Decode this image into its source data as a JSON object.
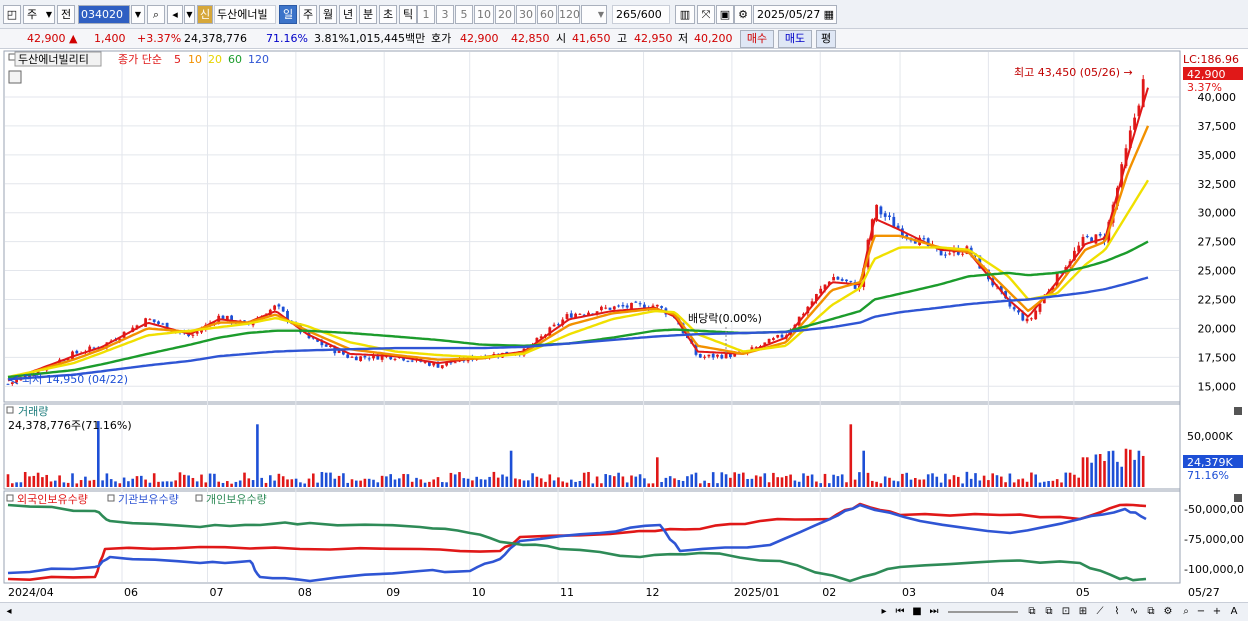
{
  "toolbar": {
    "market": "주",
    "prev": "전",
    "code": "034020",
    "sin": "신",
    "name": "두산에너빌",
    "periods": [
      "일",
      "주",
      "월",
      "년",
      "분",
      "초",
      "틱"
    ],
    "active_period": "일",
    "nums": [
      "1",
      "3",
      "5",
      "10",
      "20",
      "30",
      "60",
      "120"
    ],
    "count": "265",
    "count_total": "/600",
    "date": "2025/05/27"
  },
  "quote": {
    "price": "42,900",
    "arrow": "▲",
    "change": "1,400",
    "change_pct": "+3.37%",
    "volume": "24,378,776",
    "vol_ratio": "71.16%",
    "turnover": "3.81%",
    "amount": "1,015,445백만",
    "bid_label": "호가",
    "ask": "42,900",
    "bid": "42,850",
    "open_label": "시",
    "open": "41,650",
    "high_label": "고",
    "high": "42,950",
    "low_label": "저",
    "low": "40,200",
    "buy": "매수",
    "sell": "매도",
    "eval": "평"
  },
  "legend": {
    "stock": "두산에너빌리티",
    "ma_label": "종가 단순",
    "ma_periods": [
      "5",
      "10",
      "20",
      "60",
      "120"
    ],
    "ma_colors": [
      "#e01818",
      "#f29100",
      "#f0e000",
      "#1c9c2c",
      "#2f55d4"
    ]
  },
  "annotations": {
    "high": "최고 43,450 (05/26) →",
    "low": "최저 14,950 (04/22)",
    "dividend": "배당락(0.00%)",
    "lc": "LC:186.96",
    "price_tag": "42,900",
    "pct_tag": "3.37%"
  },
  "volume_panel": {
    "title": "거래량",
    "value": "24,378,776주(71.16%)",
    "tag": "24,379K",
    "tag_pct": "71.16%",
    "axis": [
      "50,000K"
    ]
  },
  "holdings_panel": {
    "legend": [
      "외국인보유수량",
      "기관보유수량",
      "개인보유수량"
    ],
    "colors": [
      "#e01818",
      "#2f55d4",
      "#2e8b57"
    ],
    "axis": [
      "-50,000,00",
      "-75,000,00",
      "-100,000,0"
    ]
  },
  "colors": {
    "up": "#e01818",
    "down": "#1d4fd6"
  },
  "chart_data": {
    "type": "candlestick",
    "x_ticks": [
      "2024/04",
      "06",
      "07",
      "08",
      "09",
      "10",
      "11",
      "12",
      "2025/01",
      "02",
      "03",
      "04",
      "05",
      "05/27"
    ],
    "y_ticks": [
      "15,000",
      "17,500",
      "20,000",
      "22,500",
      "25,000",
      "27,500",
      "30,000",
      "32,500",
      "35,000",
      "37,500",
      "40,000"
    ],
    "y_range": [
      13900,
      43800
    ],
    "price_series": {
      "x": [
        "2024-04-22",
        "2024-05-15",
        "2024-05-25",
        "2024-06-10",
        "2024-06-25",
        "2024-07-05",
        "2024-07-15",
        "2024-07-25",
        "2024-08-05",
        "2024-08-20",
        "2024-09-05",
        "2024-09-20",
        "2024-10-05",
        "2024-10-20",
        "2024-11-05",
        "2024-11-20",
        "2024-12-05",
        "2024-12-12",
        "2024-12-20",
        "2025-01-05",
        "2025-01-20",
        "2025-02-05",
        "2025-02-15",
        "2025-02-20",
        "2025-03-01",
        "2025-03-15",
        "2025-03-25",
        "2025-04-08",
        "2025-04-15",
        "2025-04-25",
        "2025-05-05",
        "2025-05-12",
        "2025-05-20",
        "2025-05-27"
      ],
      "close": [
        15200,
        17800,
        18500,
        20800,
        19300,
        21000,
        20300,
        21900,
        19200,
        17500,
        17600,
        16800,
        17600,
        18000,
        21200,
        21800,
        22000,
        21000,
        17500,
        17800,
        19500,
        24500,
        23500,
        30500,
        28500,
        26500,
        26800,
        22000,
        20500,
        24500,
        27800,
        27800,
        36000,
        42900
      ]
    },
    "ma_series": [
      {
        "name": "5",
        "y": [
          15500,
          17600,
          18400,
          20500,
          19500,
          20800,
          20500,
          21500,
          19500,
          17800,
          17600,
          17000,
          17500,
          18000,
          20800,
          21500,
          21800,
          21000,
          18000,
          17800,
          19200,
          24000,
          23800,
          29500,
          28500,
          26800,
          26600,
          22500,
          21000,
          24000,
          27300,
          27800,
          35000,
          40800
        ]
      },
      {
        "name": "10",
        "y": [
          15600,
          17300,
          18200,
          20000,
          19700,
          20500,
          20500,
          21200,
          19800,
          18200,
          17700,
          17300,
          17400,
          17900,
          20300,
          21300,
          21700,
          21200,
          18500,
          17800,
          18800,
          23300,
          24000,
          28000,
          28000,
          27000,
          26600,
          23200,
          21500,
          23500,
          26800,
          27500,
          33500,
          37500
        ]
      },
      {
        "name": "20",
        "y": [
          15800,
          17000,
          17900,
          19400,
          19800,
          20100,
          20400,
          20900,
          20200,
          18800,
          18000,
          17700,
          17500,
          17800,
          19500,
          20800,
          21500,
          21400,
          19500,
          18000,
          18500,
          22000,
          23500,
          26000,
          27000,
          27000,
          26800,
          24500,
          22500,
          23000,
          25500,
          26800,
          30000,
          32800
        ]
      },
      {
        "name": "60",
        "y": [
          15800,
          16400,
          16900,
          17800,
          18600,
          19200,
          19600,
          19800,
          19800,
          19600,
          19300,
          19000,
          18600,
          18500,
          18700,
          19200,
          19800,
          19900,
          19800,
          19600,
          19700,
          20800,
          21500,
          22500,
          23000,
          23800,
          24500,
          24800,
          24600,
          24800,
          25300,
          25800,
          26600,
          27500
        ]
      },
      {
        "name": "120",
        "y": [
          15600,
          16000,
          16300,
          16800,
          17200,
          17600,
          17800,
          18000,
          18100,
          18200,
          18300,
          18300,
          18300,
          18400,
          18700,
          19000,
          19300,
          19400,
          19500,
          19600,
          19700,
          20100,
          20500,
          21000,
          21400,
          21800,
          22100,
          22400,
          22500,
          22800,
          23100,
          23400,
          23900,
          24400
        ]
      }
    ],
    "annotations": [
      {
        "text": "최고 43,450 (05/26)",
        "x": "2025-05-26",
        "y": 43450
      },
      {
        "text": "최저 14,950 (04/22)",
        "x": "2024-04-22",
        "y": 14950
      },
      {
        "text": "배당락(0.00%)",
        "x": "2024-12-27"
      }
    ]
  }
}
